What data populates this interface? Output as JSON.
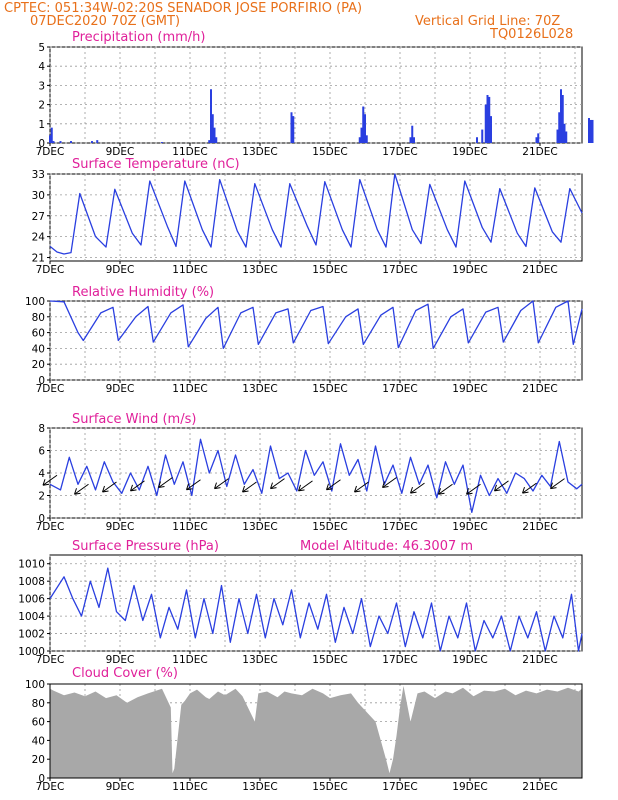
{
  "header": {
    "line1": "CPTEC:  051:34W-02:20S  SENADOR JOSE PORFIRIO (PA)",
    "line2_left": "07DEC2020 70Z (GMT)",
    "line2_right": "Vertical Grid Line: 70Z",
    "line3_right": "TQ0126L028"
  },
  "colors": {
    "header": "#e8701a",
    "title": "#e0209a",
    "line": "#2a3fe0",
    "cloud": "#a8a8a8",
    "grid": "#9a9a9a"
  },
  "x_ticks": [
    "7DEC",
    "9DEC",
    "11DEC",
    "13DEC",
    "15DEC",
    "17DEC",
    "19DEC",
    "21DEC"
  ],
  "chart_data": [
    {
      "id": "precip",
      "type": "bar",
      "title": "Precipitation (mm/h)",
      "ylim": [
        0,
        5
      ],
      "yticks": [
        0,
        1,
        2,
        3,
        4,
        5
      ],
      "x_unit": "days since 7DEC 00Z",
      "bars": [
        [
          0.0,
          0.4
        ],
        [
          0.05,
          0.8
        ],
        [
          0.1,
          0.1
        ],
        [
          0.3,
          0.1
        ],
        [
          0.6,
          0.1
        ],
        [
          1.2,
          0.1
        ],
        [
          1.35,
          0.15
        ],
        [
          3.2,
          0.05
        ],
        [
          4.55,
          0.15
        ],
        [
          4.6,
          2.8
        ],
        [
          4.65,
          1.5
        ],
        [
          4.7,
          0.8
        ],
        [
          4.75,
          0.3
        ],
        [
          6.9,
          1.6
        ],
        [
          6.95,
          1.4
        ],
        [
          8.85,
          0.3
        ],
        [
          8.9,
          0.8
        ],
        [
          8.95,
          1.9
        ],
        [
          9.0,
          1.5
        ],
        [
          9.05,
          0.4
        ],
        [
          10.3,
          0.3
        ],
        [
          10.35,
          0.9
        ],
        [
          10.4,
          0.3
        ],
        [
          12.2,
          0.3
        ],
        [
          12.35,
          0.7
        ],
        [
          12.45,
          2.0
        ],
        [
          12.5,
          2.5
        ],
        [
          12.55,
          2.4
        ],
        [
          12.6,
          1.4
        ],
        [
          13.9,
          0.3
        ],
        [
          13.95,
          0.5
        ],
        [
          14.5,
          0.7
        ],
        [
          14.55,
          1.6
        ],
        [
          14.6,
          2.8
        ],
        [
          14.65,
          2.5
        ],
        [
          14.7,
          1.0
        ],
        [
          14.75,
          0.6
        ],
        [
          15.4,
          1.3
        ],
        [
          15.45,
          1.2
        ],
        [
          15.5,
          1.2
        ]
      ]
    },
    {
      "id": "temp",
      "type": "line",
      "title": "Surface Temperature (nC)",
      "ylim": [
        20.5,
        33
      ],
      "yticks": [
        21,
        24,
        27,
        30,
        33
      ],
      "x_unit": "days since 7DEC 00Z",
      "x": [
        0,
        0.2,
        0.4,
        0.6,
        0.85,
        1.3,
        1.6,
        1.85,
        2.35,
        2.6,
        2.85,
        3.35,
        3.6,
        3.85,
        4.35,
        4.6,
        4.85,
        5.35,
        5.6,
        5.85,
        6.35,
        6.6,
        6.85,
        7.35,
        7.6,
        7.85,
        8.35,
        8.6,
        8.85,
        9.35,
        9.6,
        9.85,
        10.35,
        10.6,
        10.85,
        11.35,
        11.6,
        11.85,
        12.35,
        12.6,
        12.85,
        13.35,
        13.6,
        13.85,
        14.35,
        14.6,
        14.85,
        15.2
      ],
      "y": [
        22.6,
        21.8,
        21.5,
        21.7,
        30.2,
        24.0,
        22.5,
        30.8,
        24.5,
        22.8,
        32.0,
        25.5,
        22.6,
        32.0,
        25.0,
        22.5,
        32.2,
        24.8,
        22.5,
        31.6,
        25.0,
        22.5,
        31.6,
        25.5,
        22.8,
        31.9,
        25.0,
        22.5,
        32.2,
        25.0,
        22.5,
        33.0,
        25.0,
        23.0,
        31.5,
        25.0,
        22.5,
        32.0,
        25.3,
        23.2,
        30.9,
        24.5,
        22.6,
        31.0,
        24.7,
        23.2,
        30.9,
        27.4
      ]
    },
    {
      "id": "rh",
      "type": "line",
      "title": "Relative Humidity (%)",
      "ylim": [
        0,
        100
      ],
      "yticks": [
        0,
        20,
        40,
        60,
        80,
        100
      ],
      "x_unit": "days since 7DEC 00Z",
      "x": [
        0,
        0.4,
        0.8,
        0.95,
        1.45,
        1.8,
        1.95,
        2.45,
        2.8,
        2.95,
        3.45,
        3.8,
        3.95,
        4.45,
        4.8,
        4.95,
        5.45,
        5.8,
        5.95,
        6.45,
        6.8,
        6.95,
        7.45,
        7.8,
        7.95,
        8.45,
        8.8,
        8.95,
        9.45,
        9.8,
        9.95,
        10.45,
        10.8,
        10.95,
        11.45,
        11.8,
        11.95,
        12.45,
        12.8,
        12.95,
        13.45,
        13.8,
        13.95,
        14.45,
        14.8,
        14.95,
        15.2
      ],
      "y": [
        100,
        99,
        60,
        50,
        85,
        92,
        50,
        80,
        93,
        48,
        85,
        95,
        42,
        78,
        92,
        40,
        85,
        92,
        45,
        85,
        90,
        47,
        88,
        93,
        46,
        80,
        90,
        45,
        82,
        92,
        41,
        88,
        96,
        40,
        80,
        90,
        47,
        86,
        92,
        48,
        88,
        100,
        47,
        92,
        100,
        45,
        90
      ]
    },
    {
      "id": "wind",
      "type": "line",
      "title": "Surface Wind (m/s)",
      "ylim": [
        0,
        8
      ],
      "yticks": [
        0,
        2,
        4,
        6,
        8
      ],
      "x_unit": "days since 7DEC 00Z",
      "x": [
        0,
        0.3,
        0.55,
        0.8,
        1.05,
        1.3,
        1.55,
        1.8,
        2.05,
        2.3,
        2.55,
        2.8,
        3.05,
        3.3,
        3.55,
        3.8,
        4.05,
        4.3,
        4.55,
        4.8,
        5.05,
        5.3,
        5.55,
        5.8,
        6.05,
        6.3,
        6.55,
        6.8,
        7.05,
        7.3,
        7.55,
        7.8,
        8.05,
        8.3,
        8.55,
        8.8,
        9.05,
        9.3,
        9.55,
        9.8,
        10.05,
        10.3,
        10.55,
        10.8,
        11.05,
        11.3,
        11.55,
        11.8,
        12.05,
        12.3,
        12.55,
        12.8,
        13.05,
        13.3,
        13.55,
        13.8,
        14.05,
        14.3,
        14.55,
        14.8,
        15.05,
        15.2
      ],
      "y": [
        3.0,
        2.5,
        5.4,
        3.0,
        4.6,
        2.5,
        5.0,
        3.2,
        2.2,
        4.0,
        2.5,
        4.6,
        2.0,
        5.6,
        3.0,
        5.0,
        2.0,
        7.0,
        4.0,
        6.0,
        2.8,
        5.6,
        3.0,
        4.3,
        2.2,
        6.4,
        3.5,
        4.0,
        2.4,
        6.0,
        3.8,
        5.0,
        2.4,
        6.6,
        3.8,
        5.2,
        2.4,
        6.4,
        3.0,
        4.7,
        2.2,
        5.4,
        3.0,
        4.7,
        1.8,
        5.0,
        3.0,
        4.7,
        0.5,
        3.8,
        2.0,
        3.5,
        2.2,
        4.0,
        3.5,
        2.4,
        3.8,
        2.8,
        6.8,
        3.2,
        2.6,
        3.0
      ],
      "arrows_x": [
        0.2,
        1.1,
        1.9,
        2.7,
        3.5,
        4.3,
        5.1,
        5.9,
        6.7,
        7.5,
        8.3,
        9.1,
        9.9,
        10.7,
        11.5,
        12.3,
        13.1,
        13.9,
        14.7
      ],
      "arrows_speed": [
        3.8,
        3.0,
        3.2,
        3.3,
        3.6,
        3.4,
        3.5,
        3.2,
        3.5,
        3.3,
        3.4,
        3.2,
        3.6,
        3.1,
        3.0,
        3.0,
        3.3,
        3.1,
        3.5
      ]
    },
    {
      "id": "pres",
      "type": "line",
      "title": "Surface Pressure (hPa)",
      "subtitle": "Model Altitude: 46.3007 m",
      "ylim": [
        1000,
        1011
      ],
      "yticks": [
        1000,
        1002,
        1004,
        1006,
        1008,
        1010
      ],
      "x_unit": "days since 7DEC 00Z",
      "x": [
        0,
        0.4,
        0.65,
        0.9,
        1.15,
        1.4,
        1.65,
        1.9,
        2.15,
        2.4,
        2.65,
        2.9,
        3.15,
        3.4,
        3.65,
        3.9,
        4.15,
        4.4,
        4.65,
        4.9,
        5.15,
        5.4,
        5.65,
        5.9,
        6.15,
        6.4,
        6.65,
        6.9,
        7.15,
        7.4,
        7.65,
        7.9,
        8.15,
        8.4,
        8.65,
        8.9,
        9.15,
        9.4,
        9.65,
        9.9,
        10.15,
        10.4,
        10.65,
        10.9,
        11.15,
        11.4,
        11.65,
        11.9,
        12.15,
        12.4,
        12.65,
        12.9,
        13.15,
        13.4,
        13.65,
        13.9,
        14.15,
        14.4,
        14.65,
        14.9,
        15.1,
        15.2
      ],
      "y": [
        1006.0,
        1008.5,
        1006.0,
        1004.0,
        1008.0,
        1005.0,
        1009.5,
        1004.5,
        1003.5,
        1007.5,
        1003.5,
        1006.5,
        1001.5,
        1005.0,
        1002.5,
        1007.0,
        1001.5,
        1006.0,
        1002.0,
        1007.5,
        1001.0,
        1006.0,
        1002.0,
        1006.5,
        1001.5,
        1006.0,
        1003.0,
        1007.0,
        1001.5,
        1005.5,
        1002.5,
        1006.5,
        1001.0,
        1005.0,
        1002.0,
        1006.0,
        1000.5,
        1004.0,
        1002.0,
        1005.5,
        1000.5,
        1004.5,
        1001.5,
        1005.5,
        1000.0,
        1004.0,
        1001.5,
        1005.5,
        1000.0,
        1003.5,
        1001.5,
        1004.0,
        1000.0,
        1004.0,
        1001.5,
        1004.5,
        1000.0,
        1004.0,
        1001.5,
        1006.5,
        1000.0,
        1002.0
      ]
    },
    {
      "id": "cloud",
      "type": "area",
      "title": "Cloud Cover (%)",
      "ylim": [
        0,
        100
      ],
      "yticks": [
        0,
        20,
        40,
        60,
        80,
        100
      ],
      "x_unit": "days since 7DEC 00Z",
      "x": [
        0,
        0.1,
        0.4,
        0.7,
        1.0,
        1.3,
        1.6,
        1.9,
        2.2,
        2.5,
        2.8,
        3.2,
        3.45,
        3.5,
        3.55,
        3.75,
        3.85,
        4.0,
        4.2,
        4.45,
        4.55,
        4.8,
        5.0,
        5.3,
        5.5,
        5.85,
        5.95,
        6.2,
        6.5,
        6.7,
        6.9,
        7.2,
        7.5,
        7.8,
        8.0,
        8.3,
        8.6,
        8.8,
        9.3,
        9.6,
        9.7,
        9.8,
        9.9,
        10.0,
        10.1,
        10.3,
        10.5,
        10.7,
        11.0,
        11.3,
        11.5,
        11.8,
        12.1,
        12.4,
        12.7,
        13.0,
        13.3,
        13.6,
        13.9,
        14.2,
        14.5,
        14.8,
        15.1,
        15.2
      ],
      "y": [
        95,
        93,
        88,
        91,
        87,
        92,
        85,
        88,
        80,
        86,
        90,
        95,
        75,
        5,
        10,
        78,
        82,
        90,
        94,
        86,
        84,
        92,
        88,
        95,
        87,
        60,
        90,
        92,
        86,
        92,
        90,
        88,
        95,
        90,
        85,
        88,
        90,
        80,
        60,
        20,
        5,
        20,
        45,
        75,
        98,
        60,
        90,
        92,
        85,
        92,
        90,
        96,
        87,
        93,
        92,
        95,
        88,
        93,
        90,
        94,
        92,
        96,
        92,
        95
      ]
    }
  ]
}
